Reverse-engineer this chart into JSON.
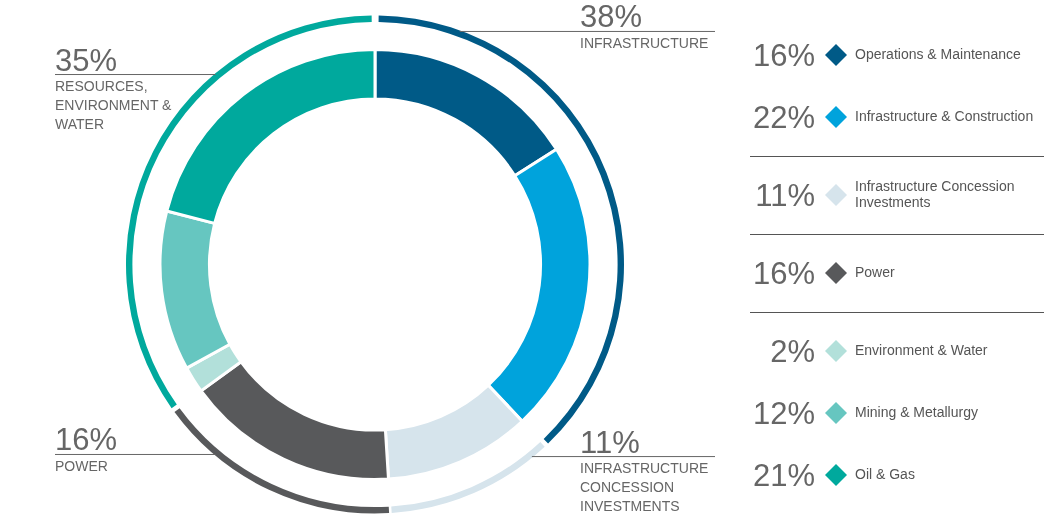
{
  "chart_data": [
    {
      "type": "donut",
      "categories": [
        "Operations & Maintenance",
        "Infrastructure & Construction",
        "Infrastructure Concession Investments",
        "Power",
        "Environment & Water",
        "Mining & Metallurgy",
        "Oil & Gas"
      ],
      "values": [
        16,
        22,
        11,
        16,
        2,
        12,
        21
      ],
      "value_labels": [
        "16%",
        "22%",
        "11%",
        "16%",
        "2%",
        "12%",
        "21%"
      ],
      "colors": [
        "#005a87",
        "#00a3dc",
        "#d6e4ec",
        "#58595b",
        "#b2e0da",
        "#66c6c0",
        "#00a99d"
      ],
      "legend": "right"
    },
    {
      "type": "donut",
      "categories": [
        "INFRASTRUCTURE",
        "INFRASTRUCTURE CONCESSION INVESTMENTS",
        "POWER",
        "RESOURCES, ENVIRONMENT & WATER"
      ],
      "values": [
        38,
        11,
        16,
        35
      ],
      "value_labels": [
        "38%",
        "11%",
        "16%",
        "35%"
      ],
      "colors": [
        "#005a87",
        "#d6e4ec",
        "#58595b",
        "#00a99d"
      ]
    }
  ]
}
